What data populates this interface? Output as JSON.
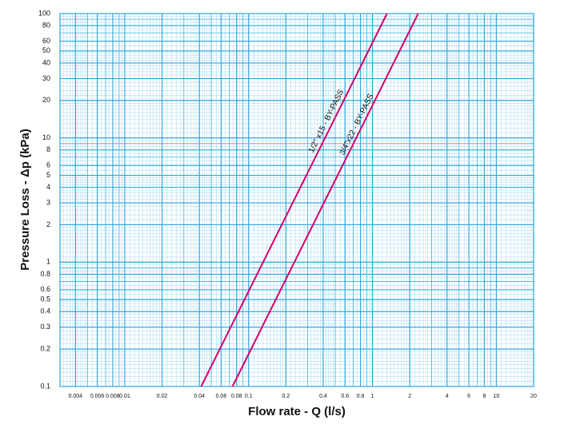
{
  "chart_data": {
    "type": "line",
    "log_x": true,
    "log_y": true,
    "grid": true,
    "x_label": "Flow rate - Q (l/s)",
    "y_label": "Pressure Loss  - Δp (kPa)",
    "xlim": [
      0.003,
      20
    ],
    "ylim": [
      0.1,
      100
    ],
    "xticks": [
      0.004,
      0.006,
      0.008,
      0.01,
      0.02,
      0.04,
      0.06,
      0.08,
      0.1,
      0.2,
      0.4,
      0.6,
      0.8,
      1,
      2,
      4,
      6,
      8,
      10,
      20
    ],
    "yticks": [
      0.1,
      0.2,
      0.3,
      0.4,
      0.5,
      0.6,
      0.8,
      1,
      2,
      3,
      4,
      5,
      6,
      8,
      10,
      20,
      30,
      40,
      50,
      60,
      80,
      100
    ],
    "grid_color": "#2aa6dc",
    "series": [
      {
        "name": "1/2\" x15 - BY-PASS",
        "color": "#d4006c",
        "x": [
          0.0414,
          1.31
        ],
        "values": [
          0.1,
          100
        ]
      },
      {
        "name": "3/4\"x22 - BY-PASS",
        "color": "#d4006c",
        "x": [
          0.0741,
          2.34
        ],
        "values": [
          0.1,
          100
        ]
      }
    ]
  }
}
